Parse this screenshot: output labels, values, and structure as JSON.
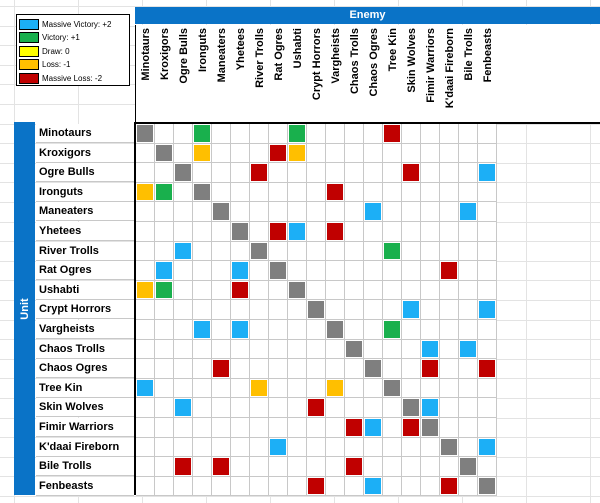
{
  "header": {
    "enemy": "Enemy",
    "unit": "Unit"
  },
  "legend": [
    {
      "label": "Massive Victory: +2",
      "color": "#1caff6"
    },
    {
      "label": "Victory: +1",
      "color": "#19b04d"
    },
    {
      "label": "Draw: 0",
      "color": "#ffff00"
    },
    {
      "label": "Loss: -1",
      "color": "#ffbf00"
    },
    {
      "label": "Massive Loss: -2",
      "color": "#c00000"
    }
  ],
  "units": [
    "Minotaurs",
    "Kroxigors",
    "Ogre Bulls",
    "Ironguts",
    "Maneaters",
    "Yhetees",
    "River Trolls",
    "Rat Ogres",
    "Ushabti",
    "Crypt Horrors",
    "Vargheists",
    "Chaos Trolls",
    "Chaos Ogres",
    "Tree Kin",
    "Skin Wolves",
    "Fimir Warriors",
    "K'daai Fireborn",
    "Bile Trolls",
    "Fenbeasts"
  ],
  "colors": {
    "diag": "#7f7f7f",
    "mv": "#1caff6",
    "v": "#19b04d",
    "d": "#ffff00",
    "l": "#ffbf00",
    "ml": "#c00000"
  },
  "matrix": [
    [
      "diag",
      "",
      "",
      "v",
      "",
      "",
      "",
      "",
      "v",
      "",
      "",
      "",
      "",
      "ml",
      "",
      "",
      "",
      "",
      ""
    ],
    [
      "",
      "diag",
      "",
      "l",
      "",
      "",
      "",
      "ml",
      "l",
      "",
      "",
      "",
      "",
      "",
      "",
      "",
      "",
      "",
      ""
    ],
    [
      "",
      "",
      "diag",
      "",
      "",
      "",
      "ml",
      "",
      "",
      "",
      "",
      "",
      "",
      "",
      "ml",
      "",
      "",
      "",
      "mv"
    ],
    [
      "l",
      "v",
      "",
      "diag",
      "",
      "",
      "",
      "",
      "",
      "",
      "ml",
      "",
      "",
      "",
      "",
      "",
      "",
      "",
      ""
    ],
    [
      "",
      "",
      "",
      "",
      "diag",
      "",
      "",
      "",
      "",
      "",
      "",
      "",
      "mv",
      "",
      "",
      "",
      "",
      "mv",
      ""
    ],
    [
      "",
      "",
      "",
      "",
      "",
      "diag",
      "",
      "ml",
      "mv",
      "",
      "ml",
      "",
      "",
      "",
      "",
      "",
      "",
      "",
      ""
    ],
    [
      "",
      "",
      "mv",
      "",
      "",
      "",
      "diag",
      "",
      "",
      "",
      "",
      "",
      "",
      "v",
      "",
      "",
      "",
      "",
      ""
    ],
    [
      "",
      "mv",
      "",
      "",
      "",
      "mv",
      "",
      "diag",
      "",
      "",
      "",
      "",
      "",
      "",
      "",
      "",
      "ml",
      "",
      ""
    ],
    [
      "l",
      "v",
      "",
      "",
      "",
      "ml",
      "",
      "",
      "diag",
      "",
      "",
      "",
      "",
      "",
      "",
      "",
      "",
      "",
      ""
    ],
    [
      "",
      "",
      "",
      "",
      "",
      "",
      "",
      "",
      "",
      "diag",
      "",
      "",
      "",
      "",
      "mv",
      "",
      "",
      "",
      "mv"
    ],
    [
      "",
      "",
      "",
      "mv",
      "",
      "mv",
      "",
      "",
      "",
      "",
      "diag",
      "",
      "",
      "v",
      "",
      "",
      "",
      "",
      ""
    ],
    [
      "",
      "",
      "",
      "",
      "",
      "",
      "",
      "",
      "",
      "",
      "",
      "diag",
      "",
      "",
      "",
      "mv",
      "",
      "mv",
      ""
    ],
    [
      "",
      "",
      "",
      "",
      "ml",
      "",
      "",
      "",
      "",
      "",
      "",
      "",
      "diag",
      "",
      "",
      "ml",
      "",
      "",
      "ml"
    ],
    [
      "mv",
      "",
      "",
      "",
      "",
      "",
      "l",
      "",
      "",
      "",
      "l",
      "",
      "",
      "diag",
      "",
      "",
      "",
      "",
      ""
    ],
    [
      "",
      "",
      "mv",
      "",
      "",
      "",
      "",
      "",
      "",
      "ml",
      "",
      "",
      "",
      "",
      "diag",
      "mv",
      "",
      "",
      ""
    ],
    [
      "",
      "",
      "",
      "",
      "",
      "",
      "",
      "",
      "",
      "",
      "",
      "ml",
      "mv",
      "",
      "ml",
      "diag",
      "",
      "",
      ""
    ],
    [
      "",
      "",
      "",
      "",
      "",
      "",
      "",
      "mv",
      "",
      "",
      "",
      "",
      "",
      "",
      "",
      "",
      "diag",
      "",
      "mv"
    ],
    [
      "",
      "",
      "ml",
      "",
      "ml",
      "",
      "",
      "",
      "",
      "",
      "",
      "ml",
      "",
      "",
      "",
      "",
      "",
      "diag",
      ""
    ],
    [
      "",
      "",
      "",
      "",
      "",
      "",
      "",
      "",
      "",
      "ml",
      "",
      "",
      "mv",
      "",
      "",
      "",
      "ml",
      "",
      "diag"
    ]
  ]
}
